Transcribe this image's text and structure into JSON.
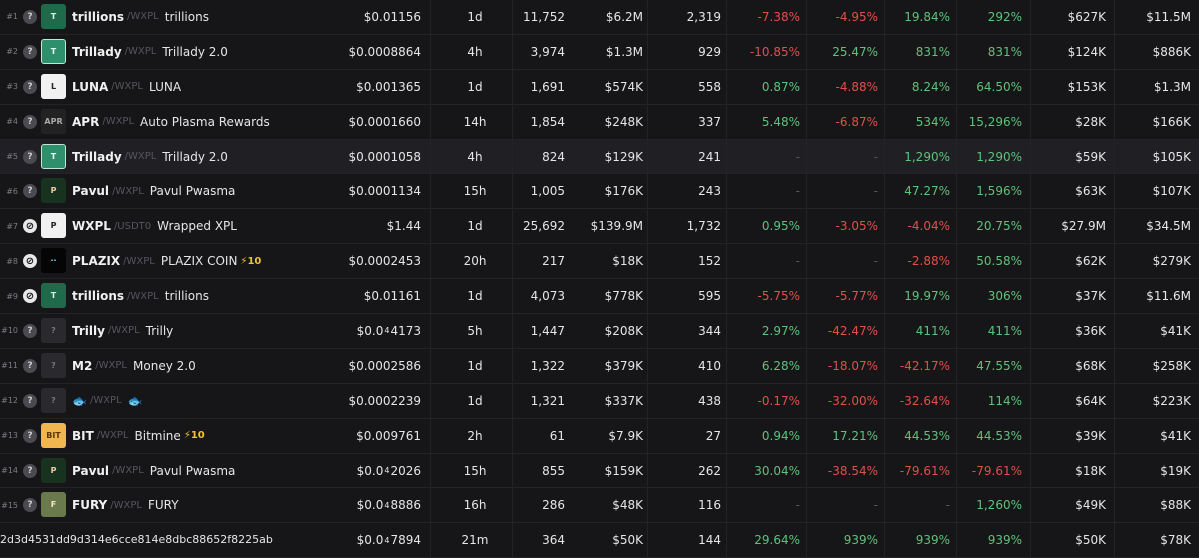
{
  "address": "2d3d4531dd9d314e6cce814e8dbc88652f8225ab",
  "rows": [
    {
      "rank": "#1",
      "help": "?",
      "logo": "T",
      "sym": "trillions",
      "pair": "/WXPL",
      "name": "trillions",
      "boost": "",
      "price": "$0.01156",
      "price_parts": null,
      "age": "1d",
      "txns": "11,752",
      "vol": "$6.2M",
      "makers": "2,319",
      "c5m": "-7.38%",
      "c1h": "-4.95%",
      "c6h": "19.84%",
      "c24h": "292%",
      "liq": "$627K",
      "mcap": "$11.5M"
    },
    {
      "rank": "#2",
      "help": "?",
      "logo": "T",
      "sym": "Trillady",
      "pair": "/WXPL",
      "name": "Trillady 2.0",
      "boost": "",
      "price": "$0.0008864",
      "price_parts": null,
      "age": "4h",
      "txns": "3,974",
      "vol": "$1.3M",
      "makers": "929",
      "c5m": "-10.85%",
      "c1h": "25.47%",
      "c6h": "831%",
      "c24h": "831%",
      "liq": "$124K",
      "mcap": "$886K"
    },
    {
      "rank": "#3",
      "help": "?",
      "logo": "L",
      "sym": "LUNA",
      "pair": "/WXPL",
      "name": "LUNA",
      "boost": "",
      "price": "$0.001365",
      "price_parts": null,
      "age": "1d",
      "txns": "1,691",
      "vol": "$574K",
      "makers": "558",
      "c5m": "0.87%",
      "c1h": "-4.88%",
      "c6h": "8.24%",
      "c24h": "64.50%",
      "liq": "$153K",
      "mcap": "$1.3M"
    },
    {
      "rank": "#4",
      "help": "?",
      "logo": "APR",
      "sym": "APR",
      "pair": "/WXPL",
      "name": "Auto Plasma Rewards",
      "boost": "",
      "price": "$0.0001660",
      "price_parts": null,
      "age": "14h",
      "txns": "1,854",
      "vol": "$248K",
      "makers": "337",
      "c5m": "5.48%",
      "c1h": "-6.87%",
      "c6h": "534%",
      "c24h": "15,296%",
      "liq": "$28K",
      "mcap": "$166K"
    },
    {
      "rank": "#5",
      "help": "?",
      "logo": "T",
      "sym": "Trillady",
      "pair": "/WXPL",
      "name": "Trillady 2.0",
      "boost": "",
      "price": "$0.0001058",
      "price_parts": null,
      "age": "4h",
      "txns": "824",
      "vol": "$129K",
      "makers": "241",
      "c5m": "-",
      "c1h": "-",
      "c6h": "1,290%",
      "c24h": "1,290%",
      "liq": "$59K",
      "mcap": "$105K"
    },
    {
      "rank": "#6",
      "help": "?",
      "logo": "P",
      "sym": "Pavul",
      "pair": "/WXPL",
      "name": "Pavul Pwasma",
      "boost": "",
      "price": "$0.0001134",
      "price_parts": null,
      "age": "15h",
      "txns": "1,005",
      "vol": "$176K",
      "makers": "243",
      "c5m": "-",
      "c1h": "-",
      "c6h": "47.27%",
      "c24h": "1,596%",
      "liq": "$63K",
      "mcap": "$107K"
    },
    {
      "rank": "#7",
      "help": "⊘",
      "logo": "P",
      "sym": "WXPL",
      "pair": "/USDT0",
      "name": "Wrapped XPL",
      "boost": "",
      "price": "$1.44",
      "price_parts": null,
      "age": "1d",
      "txns": "25,692",
      "vol": "$139.9M",
      "makers": "1,732",
      "c5m": "0.95%",
      "c1h": "-3.05%",
      "c6h": "-4.04%",
      "c24h": "20.75%",
      "liq": "$27.9M",
      "mcap": "$34.5M"
    },
    {
      "rank": "#8",
      "help": "⊘",
      "logo": "··",
      "sym": "PLAZIX",
      "pair": "/WXPL",
      "name": "PLAZIX COIN",
      "boost": "⚡10",
      "price": "$0.0002453",
      "price_parts": null,
      "age": "20h",
      "txns": "217",
      "vol": "$18K",
      "makers": "152",
      "c5m": "-",
      "c1h": "-",
      "c6h": "-2.88%",
      "c24h": "50.58%",
      "liq": "$62K",
      "mcap": "$279K"
    },
    {
      "rank": "#9",
      "help": "⊘",
      "logo": "T",
      "sym": "trillions",
      "pair": "/WXPL",
      "name": "trillions",
      "boost": "",
      "price": "$0.01161",
      "price_parts": null,
      "age": "1d",
      "txns": "4,073",
      "vol": "$778K",
      "makers": "595",
      "c5m": "-5.75%",
      "c1h": "-5.77%",
      "c6h": "19.97%",
      "c24h": "306%",
      "liq": "$37K",
      "mcap": "$11.6M"
    },
    {
      "rank": "#10",
      "help": "?",
      "logo": "?",
      "sym": "Trilly",
      "pair": "/WXPL",
      "name": "Trilly",
      "boost": "",
      "price": "",
      "price_parts": [
        "$0.0",
        "4",
        "4173"
      ],
      "age": "5h",
      "txns": "1,447",
      "vol": "$208K",
      "makers": "344",
      "c5m": "2.97%",
      "c1h": "-42.47%",
      "c6h": "411%",
      "c24h": "411%",
      "liq": "$36K",
      "mcap": "$41K"
    },
    {
      "rank": "#11",
      "help": "?",
      "logo": "?",
      "sym": "M2",
      "pair": "/WXPL",
      "name": "Money 2.0",
      "boost": "",
      "price": "$0.0002586",
      "price_parts": null,
      "age": "1d",
      "txns": "1,322",
      "vol": "$379K",
      "makers": "410",
      "c5m": "6.28%",
      "c1h": "-18.07%",
      "c6h": "-42.17%",
      "c24h": "47.55%",
      "liq": "$68K",
      "mcap": "$258K"
    },
    {
      "rank": "#12",
      "help": "?",
      "logo": "?",
      "sym": "🐟",
      "pair": "/WXPL",
      "name": "🐟",
      "boost": "",
      "price": "$0.0002239",
      "price_parts": null,
      "age": "1d",
      "txns": "1,321",
      "vol": "$337K",
      "makers": "438",
      "c5m": "-0.17%",
      "c1h": "-32.00%",
      "c6h": "-32.64%",
      "c24h": "114%",
      "liq": "$64K",
      "mcap": "$223K"
    },
    {
      "rank": "#13",
      "help": "?",
      "logo": "BIT",
      "sym": "BIT",
      "pair": "/WXPL",
      "name": "Bitmine",
      "boost": "⚡10",
      "price": "$0.009761",
      "price_parts": null,
      "age": "2h",
      "txns": "61",
      "vol": "$7.9K",
      "makers": "27",
      "c5m": "0.94%",
      "c1h": "17.21%",
      "c6h": "44.53%",
      "c24h": "44.53%",
      "liq": "$39K",
      "mcap": "$41K"
    },
    {
      "rank": "#14",
      "help": "?",
      "logo": "P",
      "sym": "Pavul",
      "pair": "/WXPL",
      "name": "Pavul Pwasma",
      "boost": "",
      "price": "",
      "price_parts": [
        "$0.0",
        "4",
        "2026"
      ],
      "age": "15h",
      "txns": "855",
      "vol": "$159K",
      "makers": "262",
      "c5m": "30.04%",
      "c1h": "-38.54%",
      "c6h": "-79.61%",
      "c24h": "-79.61%",
      "liq": "$18K",
      "mcap": "$19K"
    },
    {
      "rank": "#15",
      "help": "?",
      "logo": "F",
      "sym": "FURY",
      "pair": "/WXPL",
      "name": "FURY",
      "boost": "",
      "price": "",
      "price_parts": [
        "$0.0",
        "4",
        "8886"
      ],
      "age": "16h",
      "txns": "286",
      "vol": "$48K",
      "makers": "116",
      "c5m": "-",
      "c1h": "-",
      "c6h": "-",
      "c24h": "1,260%",
      "liq": "$49K",
      "mcap": "$88K"
    },
    {
      "rank": "",
      "help": "",
      "logo": "",
      "sym": "",
      "pair": "",
      "name": "",
      "boost": "",
      "price": "",
      "price_parts": [
        "$0.0",
        "4",
        "7894"
      ],
      "age": "21m",
      "txns": "364",
      "vol": "$50K",
      "makers": "144",
      "c5m": "29.64%",
      "c1h": "939%",
      "c6h": "939%",
      "c24h": "939%",
      "liq": "$50K",
      "mcap": "$78K"
    }
  ]
}
